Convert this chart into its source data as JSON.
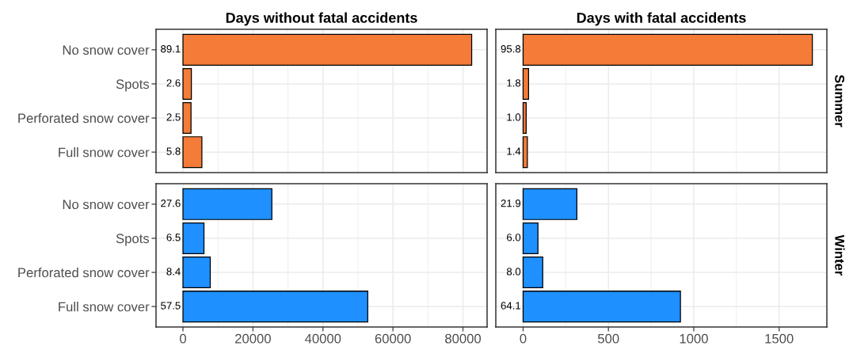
{
  "chart_data": [
    {
      "type": "bar",
      "orientation": "horizontal",
      "title": "Days without fatal accidents",
      "categories": [
        "No snow cover",
        "Spots",
        "Perforated snow cover",
        "Full snow cover"
      ],
      "values": [
        82500,
        2400,
        2300,
        5400
      ],
      "color": "#f47b38",
      "xlim": [
        -7700,
        86900
      ],
      "xticks": [
        0,
        20000,
        40000,
        60000,
        80000
      ],
      "grid": true,
      "tick_labels": "y",
      "annotations": [
        "89.1",
        "2.6",
        "2.5",
        "5.8"
      ]
    },
    {
      "type": "bar",
      "orientation": "horizontal",
      "title": "Days with fatal accidents",
      "y2label": "Summer",
      "categories": [
        null,
        null,
        null,
        null
      ],
      "values": [
        1695,
        32,
        18,
        25
      ],
      "color": "#f47b38",
      "xlim": [
        -160,
        1780
      ],
      "xticks": [
        0,
        500,
        1000,
        1500
      ],
      "grid": true,
      "tick_labels": false,
      "annotations": [
        "95.8",
        "1.8",
        "1.0",
        "1.4"
      ]
    },
    {
      "type": "bar",
      "orientation": "horizontal",
      "categories": [
        "No snow cover",
        "Spots",
        "Perforated snow cover",
        "Full snow cover"
      ],
      "values": [
        25400,
        6000,
        7800,
        52800
      ],
      "color": "#1e90ff",
      "xlim": [
        -7700,
        86900
      ],
      "xticks": [
        0,
        20000,
        40000,
        60000,
        80000
      ],
      "grid": true,
      "annotations": [
        "27.6",
        "6.5",
        "8.4",
        "57.5"
      ]
    },
    {
      "type": "bar",
      "orientation": "horizontal",
      "y2label": "Winter",
      "categories": [
        null,
        null,
        null,
        null
      ],
      "values": [
        315,
        87,
        115,
        922
      ],
      "color": "#1e90ff",
      "xlim": [
        -160,
        1780
      ],
      "xticks": [
        0,
        500,
        1000,
        1500
      ],
      "grid": true,
      "tick_labels": "x",
      "annotations": [
        "21.9",
        "6.0",
        "8.0",
        "64.1"
      ]
    }
  ]
}
